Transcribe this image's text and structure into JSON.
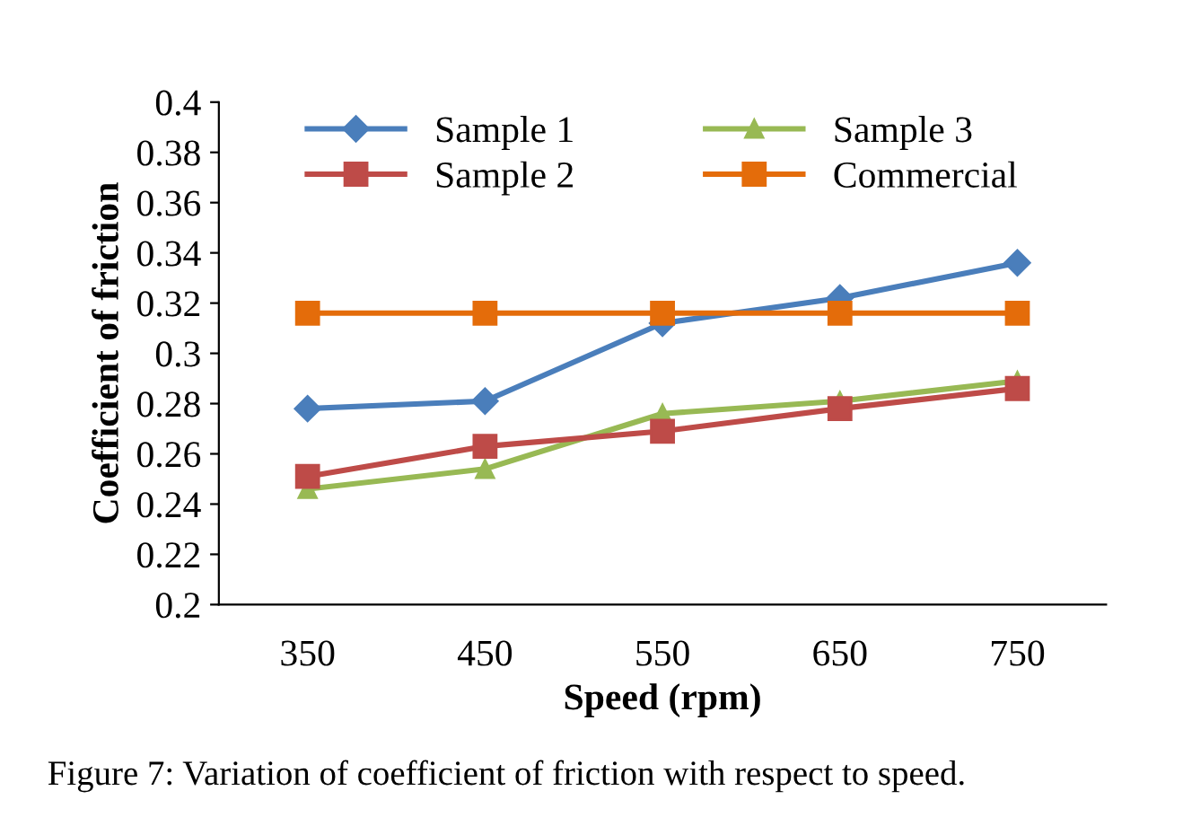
{
  "chart_data": {
    "type": "line",
    "xlabel": "Speed (rpm)",
    "ylabel": "Coefficient of friction",
    "categories": [
      "350",
      "450",
      "550",
      "650",
      "750"
    ],
    "series": [
      {
        "name": "Sample 1",
        "color": "#4a7ebb",
        "marker": "diamond",
        "values": [
          0.278,
          0.281,
          0.312,
          0.322,
          0.336
        ]
      },
      {
        "name": "Sample 2",
        "color": "#be4b48",
        "marker": "square",
        "values": [
          0.251,
          0.263,
          0.269,
          0.278,
          0.286
        ]
      },
      {
        "name": "Sample 3",
        "color": "#98b954",
        "marker": "triangle",
        "values": [
          0.246,
          0.254,
          0.276,
          0.281,
          0.289
        ]
      },
      {
        "name": "Commercial",
        "color": "#e46c0a",
        "marker": "square",
        "values": [
          0.316,
          0.316,
          0.316,
          0.316,
          0.316
        ]
      }
    ],
    "ylim": [
      0.2,
      0.4
    ],
    "yticks": [
      0.2,
      0.22,
      0.24,
      0.26,
      0.28,
      0.3,
      0.32,
      0.34,
      0.36,
      0.38,
      0.4
    ],
    "grid": false,
    "legend": "top",
    "line_style": "solid",
    "annotations": [
      "Figure 7: Variation of coefficient of friction with respect to speed."
    ]
  }
}
